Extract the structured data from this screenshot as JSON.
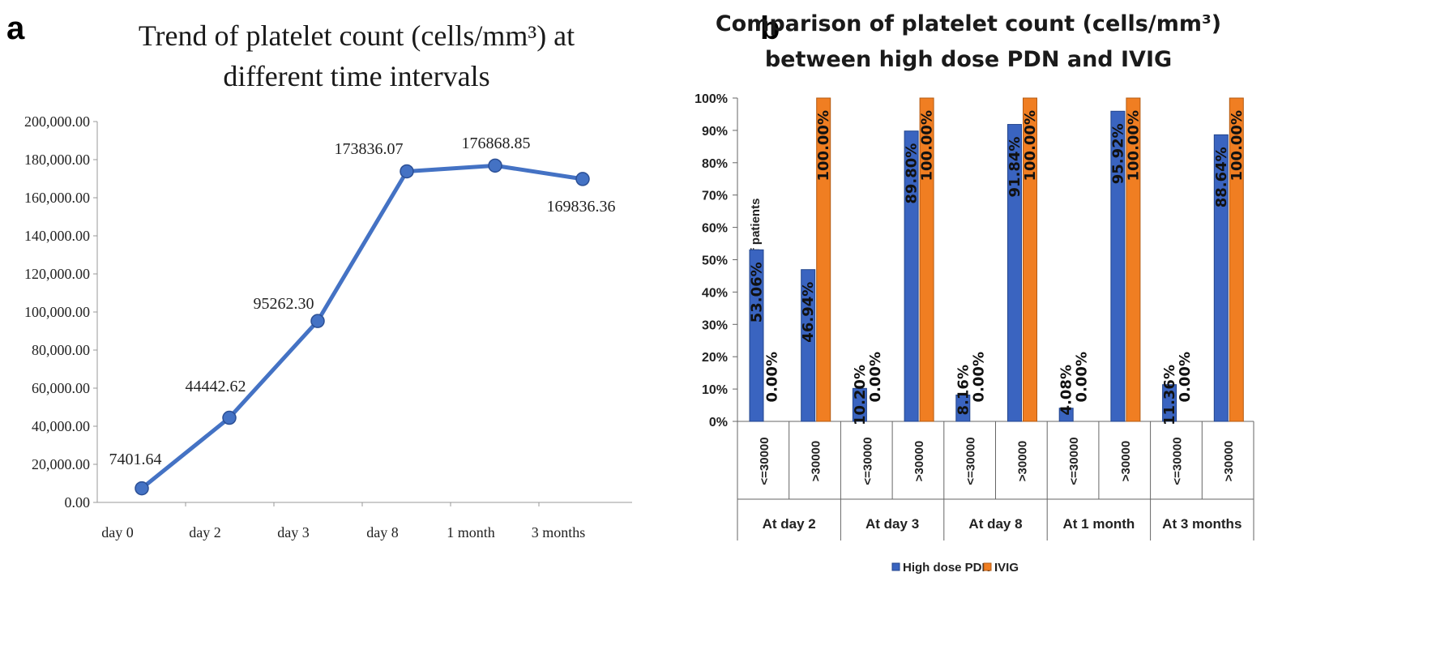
{
  "panels": {
    "a": {
      "letter": "a"
    },
    "b": {
      "letter": "b"
    }
  },
  "colors": {
    "line": "#4472C4",
    "pdn": "#3A64C0",
    "ivig": "#F07E22"
  },
  "chart_data": [
    {
      "type": "line",
      "title_lines": [
        "Trend of platelet count (cells/mm³) at",
        "different time intervals"
      ],
      "categories": [
        "day 0",
        "day 2",
        "day 3",
        "day 8",
        "1 month",
        "3 months"
      ],
      "values": [
        7401.64,
        44442.62,
        95262.3,
        173836.07,
        176868.85,
        169836.36
      ],
      "data_labels": [
        "7401.64",
        "44442.62",
        "95262.30",
        "173836.07",
        "176868.85",
        "169836.36"
      ],
      "yticks": [
        "0.00",
        "20,000.00",
        "40,000.00",
        "60,000.00",
        "80,000.00",
        "100,000.00",
        "120,000.00",
        "140,000.00",
        "160,000.00",
        "180,000.00",
        "200,000.00"
      ],
      "ylim": [
        0,
        200000
      ],
      "grid": false,
      "legend": "none"
    },
    {
      "type": "bar",
      "title_lines": [
        "Comparison of platelet count (cells/mm³)",
        "between high dose PDN and IVIG"
      ],
      "ylabel": "% of number of patients",
      "yticks": [
        "0%",
        "10%",
        "20%",
        "30%",
        "40%",
        "50%",
        "60%",
        "70%",
        "80%",
        "90%",
        "100%"
      ],
      "ylim": [
        0,
        100
      ],
      "groups": [
        "At day 2",
        "At day 3",
        "At day 8",
        "At 1 month",
        "At 3 months"
      ],
      "categories": [
        "<=30000",
        ">30000",
        "<=30000",
        ">30000",
        "<=30000",
        ">30000",
        "<=30000",
        ">30000",
        "<=30000",
        ">30000"
      ],
      "series": [
        {
          "name": "High dose PDN",
          "values": [
            53.06,
            46.94,
            10.2,
            89.8,
            8.16,
            91.84,
            4.08,
            95.92,
            11.36,
            88.64
          ],
          "labels": [
            "53.06%",
            "46.94%",
            "10.20%",
            "89.80%",
            "8.16%",
            "91.84%",
            "4.08%",
            "95.92%",
            "11.36%",
            "88.64%"
          ]
        },
        {
          "name": "IVIG",
          "values": [
            0,
            100,
            0,
            100,
            0,
            100,
            0,
            100,
            0,
            100
          ],
          "labels": [
            "0.00%",
            "100.00%",
            "0.00%",
            "100.00%",
            "0.00%",
            "100.00%",
            "0.00%",
            "100.00%",
            "0.00%",
            "100.00%"
          ]
        }
      ],
      "grid": false,
      "legend": "bottom"
    }
  ]
}
